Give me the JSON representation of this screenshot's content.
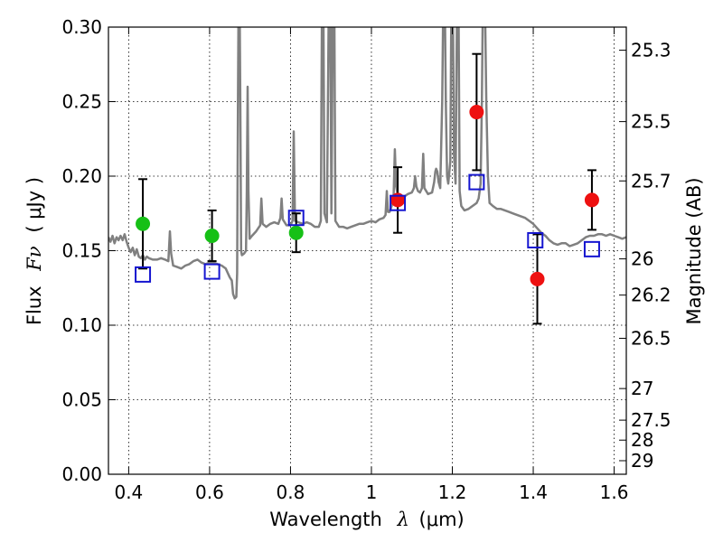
{
  "chart_data": {
    "type": "scatter",
    "xlabel_prefix": "Wavelength",
    "xlabel_symbol": "λ",
    "xlabel_unit": "(μm)",
    "ylabel_prefix": "Flux",
    "ylabel_symbol": "Fν",
    "ylabel_unit": "( μJy )",
    "y2label": "Magnitude (AB)",
    "xlim": [
      0.35,
      1.63
    ],
    "ylim": [
      0.0,
      0.3
    ],
    "grid": true,
    "x_ticks": [
      {
        "value": 0.4,
        "label": "0.4"
      },
      {
        "value": 0.6,
        "label": "0.6"
      },
      {
        "value": 0.8,
        "label": "0.8"
      },
      {
        "value": 1.0,
        "label": "1"
      },
      {
        "value": 1.2,
        "label": "1.2"
      },
      {
        "value": 1.4,
        "label": "1.4"
      },
      {
        "value": 1.6,
        "label": "1.6"
      }
    ],
    "y_ticks": [
      {
        "value": 0.0,
        "label": "0.00"
      },
      {
        "value": 0.05,
        "label": "0.05"
      },
      {
        "value": 0.1,
        "label": "0.10"
      },
      {
        "value": 0.15,
        "label": "0.15"
      },
      {
        "value": 0.2,
        "label": "0.20"
      },
      {
        "value": 0.25,
        "label": "0.25"
      },
      {
        "value": 0.3,
        "label": "0.30"
      }
    ],
    "y2_ticks": [
      {
        "flux": 0.2845,
        "label": "25.3"
      },
      {
        "flux": 0.2366,
        "label": "25.5"
      },
      {
        "flux": 0.1968,
        "label": "25.7"
      },
      {
        "flux": 0.1445,
        "label": "26"
      },
      {
        "flux": 0.1202,
        "label": "26.2"
      },
      {
        "flux": 0.0912,
        "label": "26.5"
      },
      {
        "flux": 0.0575,
        "label": "27"
      },
      {
        "flux": 0.0363,
        "label": "27.5"
      },
      {
        "flux": 0.0229,
        "label": "28"
      },
      {
        "flux": 0.0091,
        "label": "29"
      }
    ],
    "colors": {
      "green": "#16c016",
      "red": "#ee1111",
      "model_box": "#1515d0",
      "spectrum": "#808080",
      "errorbar": "#000000"
    },
    "series": [
      {
        "marker": "circle",
        "color": "green",
        "points": [
          {
            "x": 0.435,
            "y": 0.168,
            "err": 0.03
          },
          {
            "x": 0.606,
            "y": 0.16,
            "err": 0.017
          },
          {
            "x": 0.814,
            "y": 0.162,
            "err": 0.013
          }
        ]
      },
      {
        "marker": "circle",
        "color": "red",
        "points": [
          {
            "x": 1.065,
            "y": 0.184,
            "err": 0.022
          },
          {
            "x": 1.26,
            "y": 0.243,
            "err": 0.039
          },
          {
            "x": 1.41,
            "y": 0.131,
            "err": 0.03
          },
          {
            "x": 1.545,
            "y": 0.184,
            "err": 0.02
          }
        ]
      },
      {
        "marker": "square",
        "color": "model_box",
        "points": [
          {
            "x": 0.435,
            "y": 0.134
          },
          {
            "x": 0.606,
            "y": 0.136
          },
          {
            "x": 0.814,
            "y": 0.172
          },
          {
            "x": 1.065,
            "y": 0.182
          },
          {
            "x": 1.26,
            "y": 0.196
          },
          {
            "x": 1.405,
            "y": 0.157
          },
          {
            "x": 1.545,
            "y": 0.151
          }
        ]
      }
    ],
    "spectrum": [
      [
        0.35,
        0.159
      ],
      [
        0.355,
        0.156
      ],
      [
        0.36,
        0.16
      ],
      [
        0.365,
        0.155
      ],
      [
        0.37,
        0.159
      ],
      [
        0.375,
        0.157
      ],
      [
        0.38,
        0.16
      ],
      [
        0.385,
        0.157
      ],
      [
        0.39,
        0.161
      ],
      [
        0.395,
        0.156
      ],
      [
        0.4,
        0.152
      ],
      [
        0.405,
        0.149
      ],
      [
        0.41,
        0.152
      ],
      [
        0.415,
        0.147
      ],
      [
        0.42,
        0.151
      ],
      [
        0.425,
        0.146
      ],
      [
        0.43,
        0.145
      ],
      [
        0.435,
        0.147
      ],
      [
        0.44,
        0.144
      ],
      [
        0.445,
        0.146
      ],
      [
        0.45,
        0.145
      ],
      [
        0.46,
        0.144
      ],
      [
        0.47,
        0.144
      ],
      [
        0.48,
        0.145
      ],
      [
        0.49,
        0.144
      ],
      [
        0.498,
        0.143
      ],
      [
        0.502,
        0.163
      ],
      [
        0.505,
        0.148
      ],
      [
        0.51,
        0.14
      ],
      [
        0.52,
        0.139
      ],
      [
        0.53,
        0.138
      ],
      [
        0.54,
        0.14
      ],
      [
        0.55,
        0.141
      ],
      [
        0.56,
        0.143
      ],
      [
        0.57,
        0.144
      ],
      [
        0.58,
        0.142
      ],
      [
        0.59,
        0.141
      ],
      [
        0.6,
        0.142
      ],
      [
        0.61,
        0.142
      ],
      [
        0.62,
        0.141
      ],
      [
        0.63,
        0.14
      ],
      [
        0.64,
        0.138
      ],
      [
        0.65,
        0.132
      ],
      [
        0.655,
        0.13
      ],
      [
        0.658,
        0.121
      ],
      [
        0.662,
        0.118
      ],
      [
        0.666,
        0.119
      ],
      [
        0.668,
        0.135
      ],
      [
        0.67,
        0.25
      ],
      [
        0.672,
        0.33
      ],
      [
        0.674,
        0.33
      ],
      [
        0.676,
        0.25
      ],
      [
        0.678,
        0.15
      ],
      [
        0.68,
        0.147
      ],
      [
        0.685,
        0.148
      ],
      [
        0.69,
        0.15
      ],
      [
        0.692,
        0.19
      ],
      [
        0.694,
        0.26
      ],
      [
        0.696,
        0.19
      ],
      [
        0.699,
        0.158
      ],
      [
        0.705,
        0.16
      ],
      [
        0.715,
        0.163
      ],
      [
        0.725,
        0.167
      ],
      [
        0.728,
        0.185
      ],
      [
        0.731,
        0.168
      ],
      [
        0.74,
        0.166
      ],
      [
        0.75,
        0.168
      ],
      [
        0.76,
        0.169
      ],
      [
        0.77,
        0.168
      ],
      [
        0.775,
        0.172
      ],
      [
        0.778,
        0.185
      ],
      [
        0.781,
        0.171
      ],
      [
        0.79,
        0.167
      ],
      [
        0.8,
        0.167
      ],
      [
        0.805,
        0.17
      ],
      [
        0.808,
        0.23
      ],
      [
        0.811,
        0.17
      ],
      [
        0.82,
        0.169
      ],
      [
        0.83,
        0.168
      ],
      [
        0.84,
        0.169
      ],
      [
        0.85,
        0.168
      ],
      [
        0.86,
        0.166
      ],
      [
        0.87,
        0.166
      ],
      [
        0.875,
        0.17
      ],
      [
        0.878,
        0.33
      ],
      [
        0.881,
        0.33
      ],
      [
        0.884,
        0.175
      ],
      [
        0.89,
        0.169
      ],
      [
        0.895,
        0.33
      ],
      [
        0.898,
        0.33
      ],
      [
        0.901,
        0.175
      ],
      [
        0.905,
        0.33
      ],
      [
        0.908,
        0.33
      ],
      [
        0.911,
        0.17
      ],
      [
        0.92,
        0.166
      ],
      [
        0.93,
        0.166
      ],
      [
        0.94,
        0.165
      ],
      [
        0.95,
        0.166
      ],
      [
        0.96,
        0.167
      ],
      [
        0.97,
        0.168
      ],
      [
        0.98,
        0.168
      ],
      [
        0.99,
        0.169
      ],
      [
        1.0,
        0.17
      ],
      [
        1.01,
        0.169
      ],
      [
        1.02,
        0.171
      ],
      [
        1.03,
        0.172
      ],
      [
        1.035,
        0.174
      ],
      [
        1.038,
        0.19
      ],
      [
        1.041,
        0.176
      ],
      [
        1.045,
        0.176
      ],
      [
        1.05,
        0.18
      ],
      [
        1.055,
        0.188
      ],
      [
        1.058,
        0.218
      ],
      [
        1.061,
        0.193
      ],
      [
        1.065,
        0.187
      ],
      [
        1.07,
        0.186
      ],
      [
        1.08,
        0.186
      ],
      [
        1.09,
        0.188
      ],
      [
        1.1,
        0.189
      ],
      [
        1.105,
        0.192
      ],
      [
        1.108,
        0.2
      ],
      [
        1.111,
        0.193
      ],
      [
        1.115,
        0.19
      ],
      [
        1.12,
        0.189
      ],
      [
        1.125,
        0.192
      ],
      [
        1.128,
        0.215
      ],
      [
        1.131,
        0.192
      ],
      [
        1.14,
        0.188
      ],
      [
        1.15,
        0.189
      ],
      [
        1.155,
        0.196
      ],
      [
        1.158,
        0.203
      ],
      [
        1.16,
        0.205
      ],
      [
        1.163,
        0.203
      ],
      [
        1.166,
        0.196
      ],
      [
        1.17,
        0.192
      ],
      [
        1.175,
        0.25
      ],
      [
        1.178,
        0.33
      ],
      [
        1.181,
        0.33
      ],
      [
        1.184,
        0.25
      ],
      [
        1.187,
        0.2
      ],
      [
        1.19,
        0.195
      ],
      [
        1.195,
        0.21
      ],
      [
        1.198,
        0.33
      ],
      [
        1.201,
        0.33
      ],
      [
        1.204,
        0.215
      ],
      [
        1.208,
        0.195
      ],
      [
        1.212,
        0.33
      ],
      [
        1.215,
        0.33
      ],
      [
        1.218,
        0.19
      ],
      [
        1.222,
        0.18
      ],
      [
        1.23,
        0.177
      ],
      [
        1.24,
        0.178
      ],
      [
        1.25,
        0.18
      ],
      [
        1.26,
        0.182
      ],
      [
        1.265,
        0.185
      ],
      [
        1.27,
        0.195
      ],
      [
        1.273,
        0.25
      ],
      [
        1.276,
        0.33
      ],
      [
        1.28,
        0.33
      ],
      [
        1.284,
        0.25
      ],
      [
        1.288,
        0.2
      ],
      [
        1.292,
        0.182
      ],
      [
        1.3,
        0.18
      ],
      [
        1.31,
        0.178
      ],
      [
        1.32,
        0.178
      ],
      [
        1.33,
        0.177
      ],
      [
        1.34,
        0.176
      ],
      [
        1.35,
        0.175
      ],
      [
        1.36,
        0.174
      ],
      [
        1.37,
        0.173
      ],
      [
        1.38,
        0.172
      ],
      [
        1.39,
        0.17
      ],
      [
        1.4,
        0.168
      ],
      [
        1.41,
        0.165
      ],
      [
        1.42,
        0.162
      ],
      [
        1.43,
        0.16
      ],
      [
        1.44,
        0.157
      ],
      [
        1.45,
        0.155
      ],
      [
        1.46,
        0.154
      ],
      [
        1.47,
        0.155
      ],
      [
        1.48,
        0.155
      ],
      [
        1.49,
        0.153
      ],
      [
        1.5,
        0.154
      ],
      [
        1.51,
        0.155
      ],
      [
        1.52,
        0.157
      ],
      [
        1.53,
        0.159
      ],
      [
        1.54,
        0.16
      ],
      [
        1.55,
        0.16
      ],
      [
        1.56,
        0.161
      ],
      [
        1.57,
        0.161
      ],
      [
        1.58,
        0.16
      ],
      [
        1.59,
        0.161
      ],
      [
        1.6,
        0.16
      ],
      [
        1.61,
        0.159
      ],
      [
        1.62,
        0.158
      ],
      [
        1.63,
        0.159
      ]
    ]
  }
}
